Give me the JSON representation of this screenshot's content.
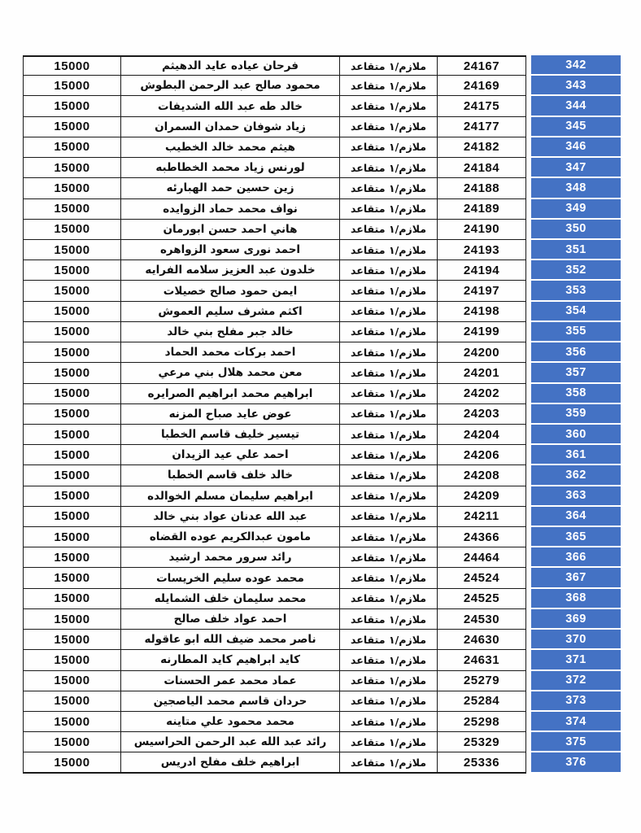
{
  "page": {
    "background": "#fefefe",
    "description": "retired-officers-payment-list-page"
  },
  "colors": {
    "serial_cell_bg": "#4472C4",
    "serial_cell_text": "#ffffff",
    "table_border": "#1a1a1a",
    "table_text": "#0f0f0f"
  },
  "table": {
    "rows": [
      {
        "serial": "342",
        "id": "24167",
        "rank": "ملازم/١ متقاعد",
        "name": "فرحان عياده عايد الدهيثم",
        "amount": "15000"
      },
      {
        "serial": "343",
        "id": "24169",
        "rank": "ملازم/١ متقاعد",
        "name": "محمود صالح عبد الرحمن البطوش",
        "amount": "15000"
      },
      {
        "serial": "344",
        "id": "24175",
        "rank": "ملازم/١ متقاعد",
        "name": "خالد طه عبد الله الشديفات",
        "amount": "15000"
      },
      {
        "serial": "345",
        "id": "24177",
        "rank": "ملازم/١ متقاعد",
        "name": "زياد شوفان حمدان السمران",
        "amount": "15000"
      },
      {
        "serial": "346",
        "id": "24182",
        "rank": "ملازم/١ متقاعد",
        "name": "هيثم محمد خالد الخطيب",
        "amount": "15000"
      },
      {
        "serial": "347",
        "id": "24184",
        "rank": "ملازم/١ متقاعد",
        "name": "لورنس زياد محمد الخطاطبه",
        "amount": "15000"
      },
      {
        "serial": "348",
        "id": "24188",
        "rank": "ملازم/١ متقاعد",
        "name": "زين حسين حمد الهبارئه",
        "amount": "15000"
      },
      {
        "serial": "349",
        "id": "24189",
        "rank": "ملازم/١ متقاعد",
        "name": "نواف محمد حماد الزوايده",
        "amount": "15000"
      },
      {
        "serial": "350",
        "id": "24190",
        "rank": "ملازم/١ متقاعد",
        "name": "هاني احمد حسن ابورمان",
        "amount": "15000"
      },
      {
        "serial": "351",
        "id": "24193",
        "rank": "ملازم/١ متقاعد",
        "name": "احمد نورى سعود الزواهره",
        "amount": "15000"
      },
      {
        "serial": "352",
        "id": "24194",
        "rank": "ملازم/١ متقاعد",
        "name": "خلدون عبد العزيز سلامه الفرايه",
        "amount": "15000"
      },
      {
        "serial": "353",
        "id": "24197",
        "rank": "ملازم/١ متقاعد",
        "name": "ايمن حمود صالح خصيلات",
        "amount": "15000"
      },
      {
        "serial": "354",
        "id": "24198",
        "rank": "ملازم/١ متقاعد",
        "name": "اكثم مشرف سليم العموش",
        "amount": "15000"
      },
      {
        "serial": "355",
        "id": "24199",
        "rank": "ملازم/١ متقاعد",
        "name": "خالد جبر مفلح بني خالد",
        "amount": "15000"
      },
      {
        "serial": "356",
        "id": "24200",
        "rank": "ملازم/١ متقاعد",
        "name": "احمد بركات محمد الحماد",
        "amount": "15000"
      },
      {
        "serial": "357",
        "id": "24201",
        "rank": "ملازم/١ متقاعد",
        "name": "معن محمد هلال بني مرعي",
        "amount": "15000"
      },
      {
        "serial": "358",
        "id": "24202",
        "rank": "ملازم/١ متقاعد",
        "name": "ابراهيم محمد ابراهيم الصرايره",
        "amount": "15000"
      },
      {
        "serial": "359",
        "id": "24203",
        "rank": "ملازم/١ متقاعد",
        "name": "عوض عايد صباح المزنه",
        "amount": "15000"
      },
      {
        "serial": "360",
        "id": "24204",
        "rank": "ملازم/١ متقاعد",
        "name": "تيسير خليف قاسم الخطبا",
        "amount": "15000"
      },
      {
        "serial": "361",
        "id": "24206",
        "rank": "ملازم/١ متقاعد",
        "name": "احمد علي عيد الزيدان",
        "amount": "15000"
      },
      {
        "serial": "362",
        "id": "24208",
        "rank": "ملازم/١ متقاعد",
        "name": "خالد خلف قاسم الخطبا",
        "amount": "15000"
      },
      {
        "serial": "363",
        "id": "24209",
        "rank": "ملازم/١ متقاعد",
        "name": "ابراهيم سليمان مسلم الخوالده",
        "amount": "15000"
      },
      {
        "serial": "364",
        "id": "24211",
        "rank": "ملازم/١ متقاعد",
        "name": "عبد الله عدنان عواد بني خالد",
        "amount": "15000"
      },
      {
        "serial": "365",
        "id": "24366",
        "rank": "ملازم/١ متقاعد",
        "name": "مامون عبدالكريم عوده القضاه",
        "amount": "15000"
      },
      {
        "serial": "366",
        "id": "24464",
        "rank": "ملازم/١ متقاعد",
        "name": "رائد سرور محمد ارشيد",
        "amount": "15000"
      },
      {
        "serial": "367",
        "id": "24524",
        "rank": "ملازم/١ متقاعد",
        "name": "محمد عوده سليم الخريسات",
        "amount": "15000"
      },
      {
        "serial": "368",
        "id": "24525",
        "rank": "ملازم/١ متقاعد",
        "name": "محمد سليمان خلف الشمايله",
        "amount": "15000"
      },
      {
        "serial": "369",
        "id": "24530",
        "rank": "ملازم/١ متقاعد",
        "name": "احمد عواد خلف صالح",
        "amount": "15000"
      },
      {
        "serial": "370",
        "id": "24630",
        "rank": "ملازم/١ متقاعد",
        "name": "ناصر محمد ضيف الله ابو عاقوله",
        "amount": "15000"
      },
      {
        "serial": "371",
        "id": "24631",
        "rank": "ملازم/١ متقاعد",
        "name": "كايد ابراهيم كايد المطارنه",
        "amount": "15000"
      },
      {
        "serial": "372",
        "id": "25279",
        "rank": "ملازم/١ متقاعد",
        "name": "عماد محمد عمر الحسنات",
        "amount": "15000"
      },
      {
        "serial": "373",
        "id": "25284",
        "rank": "ملازم/١ متقاعد",
        "name": "حردان قاسم محمد الياصجين",
        "amount": "15000"
      },
      {
        "serial": "374",
        "id": "25298",
        "rank": "ملازم/١ متقاعد",
        "name": "محمد محمود علي متاينه",
        "amount": "15000"
      },
      {
        "serial": "375",
        "id": "25329",
        "rank": "ملازم/١ متقاعد",
        "name": "رائد عبد الله عبد الرحمن الحراسيس",
        "amount": "15000"
      },
      {
        "serial": "376",
        "id": "25336",
        "rank": "ملازم/١ متقاعد",
        "name": "ابراهيم خلف مفلح ادريس",
        "amount": "15000"
      }
    ]
  }
}
